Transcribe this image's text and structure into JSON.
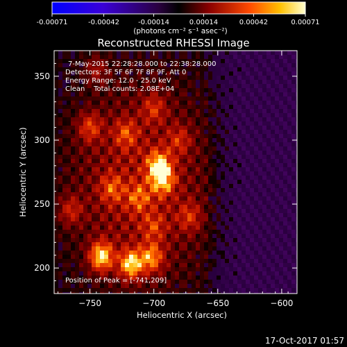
{
  "colorbar": {
    "tick_labels": [
      "-0.00071",
      "-0.00042",
      "-0.00014",
      "0.00014",
      "0.00042",
      "0.00071"
    ],
    "units_label": "(photons cm⁻² s⁻¹ asec⁻²)",
    "range": [
      -0.00071,
      0.00071
    ]
  },
  "chart_data": {
    "type": "heatmap",
    "title": "Reconstructed RHESSI Image",
    "xlabel": "Heliocentric X (arcsec)",
    "ylabel": "Heliocentric Y (arcsec)",
    "xlim": [
      -778,
      -588
    ],
    "ylim": [
      180,
      370
    ],
    "x_ticks": [
      -750,
      -700,
      -650,
      -600
    ],
    "y_ticks": [
      200,
      250,
      300,
      350
    ],
    "x_tick_labels": [
      "−750",
      "−700",
      "−650",
      "−600"
    ],
    "y_tick_labels": [
      "200",
      "250",
      "300",
      "350"
    ],
    "annotations": {
      "time_range": "7-May-2015 22:28:28.000 to 22:38:28.000",
      "detectors": "Detectors: 3F 5F 6F 7F 8F 9F, Att 0",
      "energy": "Energy Range: 12.0 - 25.0 keV",
      "method": "Clean    Total counts: 2.08E+04",
      "peak": "Position of Peak = [-741,209]"
    },
    "peak": [
      -741,
      209
    ],
    "sources": [
      {
        "x": -741,
        "y": 209,
        "level": 1.0
      },
      {
        "x": -718,
        "y": 203,
        "level": 0.95
      },
      {
        "x": -702,
        "y": 208,
        "level": 0.7
      },
      {
        "x": -696,
        "y": 280,
        "level": 0.85
      },
      {
        "x": -693,
        "y": 268,
        "level": 0.7
      },
      {
        "x": -733,
        "y": 262,
        "level": 0.45
      },
      {
        "x": -712,
        "y": 255,
        "level": 0.45
      },
      {
        "x": -750,
        "y": 310,
        "level": 0.5
      },
      {
        "x": -722,
        "y": 305,
        "level": 0.45
      },
      {
        "x": -700,
        "y": 325,
        "level": 0.4
      },
      {
        "x": -765,
        "y": 245,
        "level": 0.4
      },
      {
        "x": -672,
        "y": 240,
        "level": 0.4
      },
      {
        "x": -680,
        "y": 300,
        "level": 0.35
      },
      {
        "x": -745,
        "y": 355,
        "level": 0.3
      },
      {
        "x": -700,
        "y": 232,
        "level": 0.35
      }
    ]
  },
  "footer": {
    "date": "17-Oct-2017 01:57"
  }
}
